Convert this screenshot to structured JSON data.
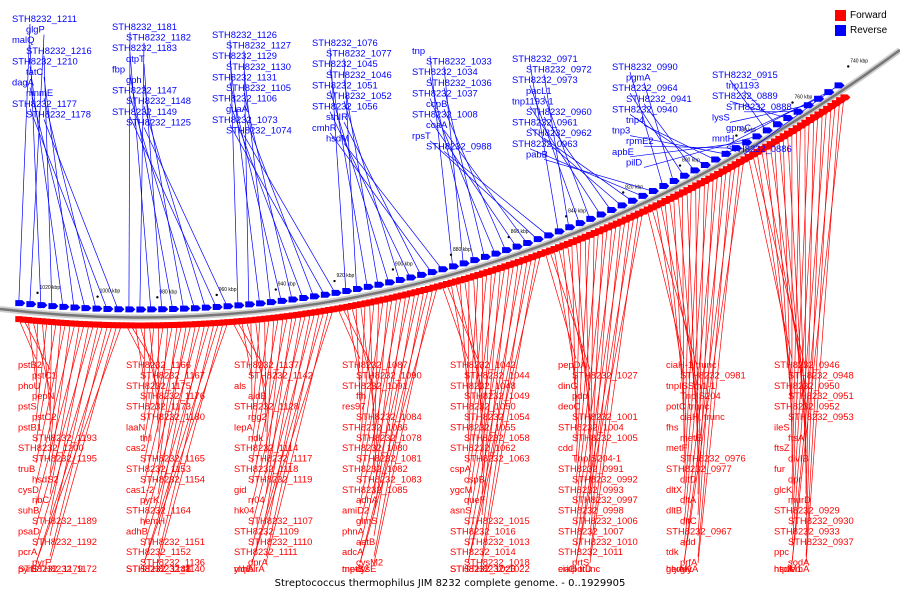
{
  "legend": {
    "forward_label": "Forward",
    "reverse_label": "Reverse",
    "forward_color": "#ff0000",
    "reverse_color": "#0000ff"
  },
  "caption": "Streptococcus thermophilus JIM 8232 complete genome. - 0..1929905",
  "scale_ticks": [
    "1020 kbp",
    "1000 kbp",
    "980 kbp",
    "960 kbp",
    "940 kbp",
    "920 kbp",
    "900 kbp",
    "880 kbp",
    "860 kbp",
    "840 kbp",
    "820 kbp",
    "800 kbp",
    "780 kbp",
    "760 kbp",
    "740 kbp"
  ],
  "reverse_genes": [
    "STH8232_1211",
    "glgP",
    "malQ",
    "STH8232_1216",
    "STH8232_1210",
    "tatC",
    "dagA",
    "mnmE",
    "STH8232_1177",
    "STH8232_1178",
    "STH8232_1181",
    "STH8232_1182",
    "STH8232_1183",
    "dtpT",
    "fbp",
    "gph",
    "STH8232_1147",
    "STH8232_1148",
    "STH8232_1149",
    "STH8232_1125",
    "STH8232_1126",
    "STH8232_1127",
    "STH8232_1129",
    "STH8232_1130",
    "STH8232_1131",
    "STH8232_1105",
    "STH8232_1106",
    "guaA",
    "STH8232_1073",
    "STH8232_1074",
    "STH8232_1076",
    "STH8232_1077",
    "STH8232_1045",
    "STH8232_1046",
    "STH8232_1051",
    "STH8232_1052",
    "STH8232_1056",
    "sthIR",
    "cmhR",
    "hsdM",
    "tnp",
    "STH8232_1033",
    "STH8232_1034",
    "STH8232_1036",
    "STH8232_1037",
    "copB",
    "STH8232_1008",
    "coaA",
    "rpsT",
    "STH8232_0988",
    "STH8232_0971",
    "STH8232_0972",
    "STH8232_0973",
    "pacL1",
    "tnp1193-1",
    "STH8232_0960",
    "STH8232_0961",
    "STH8232_0962",
    "STH8232_0963",
    "pabB",
    "STH8232_0990",
    "pgmA",
    "STH8232_0964",
    "STH8232_0941",
    "STH8232_0940",
    "tnp4",
    "tnp3",
    "rpmE2",
    "apbE",
    "pilD",
    "STH8232_0915",
    "tnp1193",
    "STH8232_0889",
    "STH8232_0888",
    "lysS",
    "gpmC",
    "mntH",
    "STH8232_0886"
  ],
  "forward_genes": [
    "pstB2",
    "pstC1",
    "phoU",
    "pepN",
    "pstS",
    "pstC2",
    "pstB1",
    "STH8232_1193",
    "STH8232_1200",
    "STH8232_1195",
    "truB",
    "hsdS2",
    "cysD",
    "ribC",
    "suhB",
    "STH8232_1189",
    "psaD",
    "STH8232_1192",
    "pcrA",
    "pyrF",
    "pyrE",
    "STH8232_1172",
    "STH8232_1179",
    "STH8232_1166",
    "STH8232_1167",
    "STH8232_1175",
    "STH8232_1176",
    "STH8232_1173",
    "STH8232_1180",
    "laaN",
    "thil",
    "cas2",
    "STH8232_1165",
    "STH8232_1153",
    "STH8232_1154",
    "cas1-2",
    "pyrK",
    "STH8232_1164",
    "hemH",
    "adhB",
    "STH8232_1151",
    "STH8232_1152",
    "STH8232_1136",
    "STH8232_1138",
    "STH8232_1140",
    "STH8232_1141",
    "STH8232_1137",
    "STH8232_1142",
    "als",
    "aldB",
    "STH8232_1128",
    "rgg2",
    "lepA",
    "ndk",
    "STH8232_1114",
    "STH8232_1117",
    "STH8232_1118",
    "STH8232_1119",
    "gid",
    "rr04",
    "hk04",
    "STH8232_1107",
    "STH8232_1109",
    "STH8232_1110",
    "STH8232_1111",
    "dprA",
    "ylqF",
    "birA",
    "rnhA",
    "STH8232_1087",
    "STH8232_1090",
    "STH8232_1091",
    "ffh",
    "res97",
    "STH8232_1084",
    "STH8232_1086",
    "STH8232_1078",
    "STH8232_1080",
    "STH8232_1081",
    "STH8232_1082",
    "STH8232_1083",
    "STH8232_1085",
    "adhA",
    "amiD2",
    "glmS",
    "phnA",
    "aatB",
    "adcA",
    "cysM2",
    "metB2",
    "cysE",
    "tnp-1",
    "STH8232_1042",
    "STH8232_1044",
    "STH8232_1048",
    "STH8232_1049",
    "STH8232_1050",
    "STH8232_1054",
    "STH8232_1055",
    "STH8232_1058",
    "STH8232_1062",
    "STH8232_1063",
    "cspA",
    "cspB",
    "ygcM",
    "queF",
    "asnS",
    "STH8232_1015",
    "STH8232_1016",
    "STH8232_1013",
    "STH8232_1014",
    "STH8232_1018",
    "STH8232_1020",
    "STH8232_1022",
    "STH8232_1023",
    "pepDA",
    "STH8232_1027",
    "dinG",
    "pdp",
    "deoC",
    "STH8232_1001",
    "STH8232_1004",
    "STH8232_1005",
    "cdd",
    "TnpIS204-1",
    "STH8232_0991",
    "STH8232_0992",
    "STH8232_0993",
    "STH8232_0997",
    "STH8232_0998",
    "STH8232_1006",
    "STH8232_1007",
    "STH8232_1010",
    "STH8232_1011",
    "prtS",
    "eriC",
    "potD",
    "ciaH trunc",
    "ciaH-1 trunc",
    "STH8232_0981",
    "tnpISSth1-1",
    "TnpIS204",
    "potC trunc",
    "ciaH, trunc",
    "fhs",
    "metE",
    "metF",
    "STH8232_0976",
    "STH8232_0977",
    "dltD",
    "dltX",
    "dltA",
    "dltB",
    "dltC",
    "STH8232_0967",
    "add",
    "tdk",
    "prfA",
    "hemK",
    "glyA",
    "glyA-1",
    "STH8232_0946",
    "STH8232_0948",
    "STH8232_0950",
    "STH8232_0951",
    "STH8232_0952",
    "STH8232_0953",
    "ileS",
    "ftsA",
    "ftsZ",
    "divIB",
    "fur",
    "dpr",
    "glcK",
    "murD",
    "STH8232_0929",
    "STH8232_0930",
    "STH8232_0933",
    "STH8232_0937",
    "ppc",
    "sodA",
    "hsdM1",
    "lemA",
    "htpX"
  ]
}
